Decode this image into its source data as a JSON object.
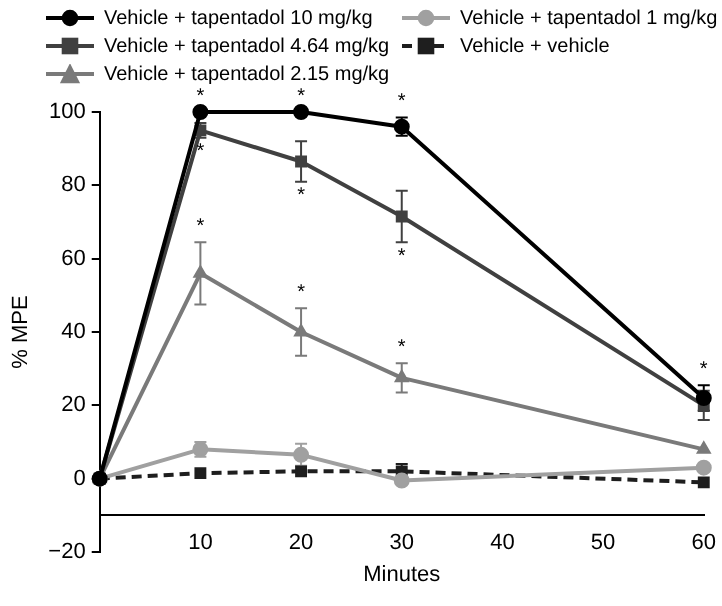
{
  "chart_data": {
    "type": "line",
    "xlabel": "Minutes",
    "ylabel": "% MPE",
    "xlim": [
      0,
      60
    ],
    "xticks": [
      10,
      20,
      30,
      40,
      50,
      60
    ],
    "ylim": [
      -20,
      100
    ],
    "yticks": [
      -20,
      0,
      20,
      40,
      60,
      80,
      100
    ],
    "x": [
      0,
      10,
      20,
      30,
      60
    ],
    "grid": false,
    "legend": "top",
    "line_style": "solid",
    "series": [
      {
        "name": "Vehicle + tapentadol 10 mg/kg",
        "color": "#000000",
        "marker": "circle",
        "values": [
          0,
          100,
          100,
          96,
          22
        ],
        "errors": [
          null,
          null,
          null,
          2.5,
          3.5
        ]
      },
      {
        "name": "Vehicle + tapentadol 4.64 mg/kg",
        "color": "#404040",
        "marker": "square",
        "values": [
          0,
          95,
          86.5,
          71.5,
          20
        ],
        "errors": [
          null,
          2,
          5.5,
          7,
          4
        ]
      },
      {
        "name": "Vehicle + tapentadol 2.15 mg/kg",
        "color": "#7a7a7a",
        "marker": "triangle",
        "values": [
          0,
          56,
          40,
          27.5,
          8
        ],
        "errors": [
          null,
          8.5,
          6.5,
          4,
          null
        ]
      },
      {
        "name": "Vehicle + tapentadol 1 mg/kg",
        "color": "#a0a0a0",
        "marker": "circle",
        "values": [
          0,
          8,
          6.5,
          -0.5,
          3
        ],
        "errors": [
          null,
          2,
          3,
          null,
          null
        ]
      },
      {
        "name": "Vehicle + vehicle",
        "color": "#1e1e1e",
        "marker": "square",
        "line_style": "dashed",
        "values": [
          0,
          1.5,
          2,
          2,
          -1
        ],
        "errors": [
          null,
          null,
          null,
          2,
          null
        ]
      }
    ],
    "annotations": [
      {
        "text": "*",
        "x": 10,
        "y": 100
      },
      {
        "text": "*",
        "x": 20,
        "y": 100
      },
      {
        "text": "*",
        "x": 30,
        "y": 98.5
      },
      {
        "text": "*",
        "x": 60,
        "y": 25.5
      },
      {
        "text": "*",
        "x": 10,
        "y": 93
      },
      {
        "text": "*",
        "x": 20,
        "y": 81
      },
      {
        "text": "*",
        "x": 30,
        "y": 64.5
      },
      {
        "text": "*",
        "x": 10,
        "y": 64.5
      },
      {
        "text": "*",
        "x": 20,
        "y": 46.5
      },
      {
        "text": "*",
        "x": 30,
        "y": 31.5
      }
    ]
  }
}
